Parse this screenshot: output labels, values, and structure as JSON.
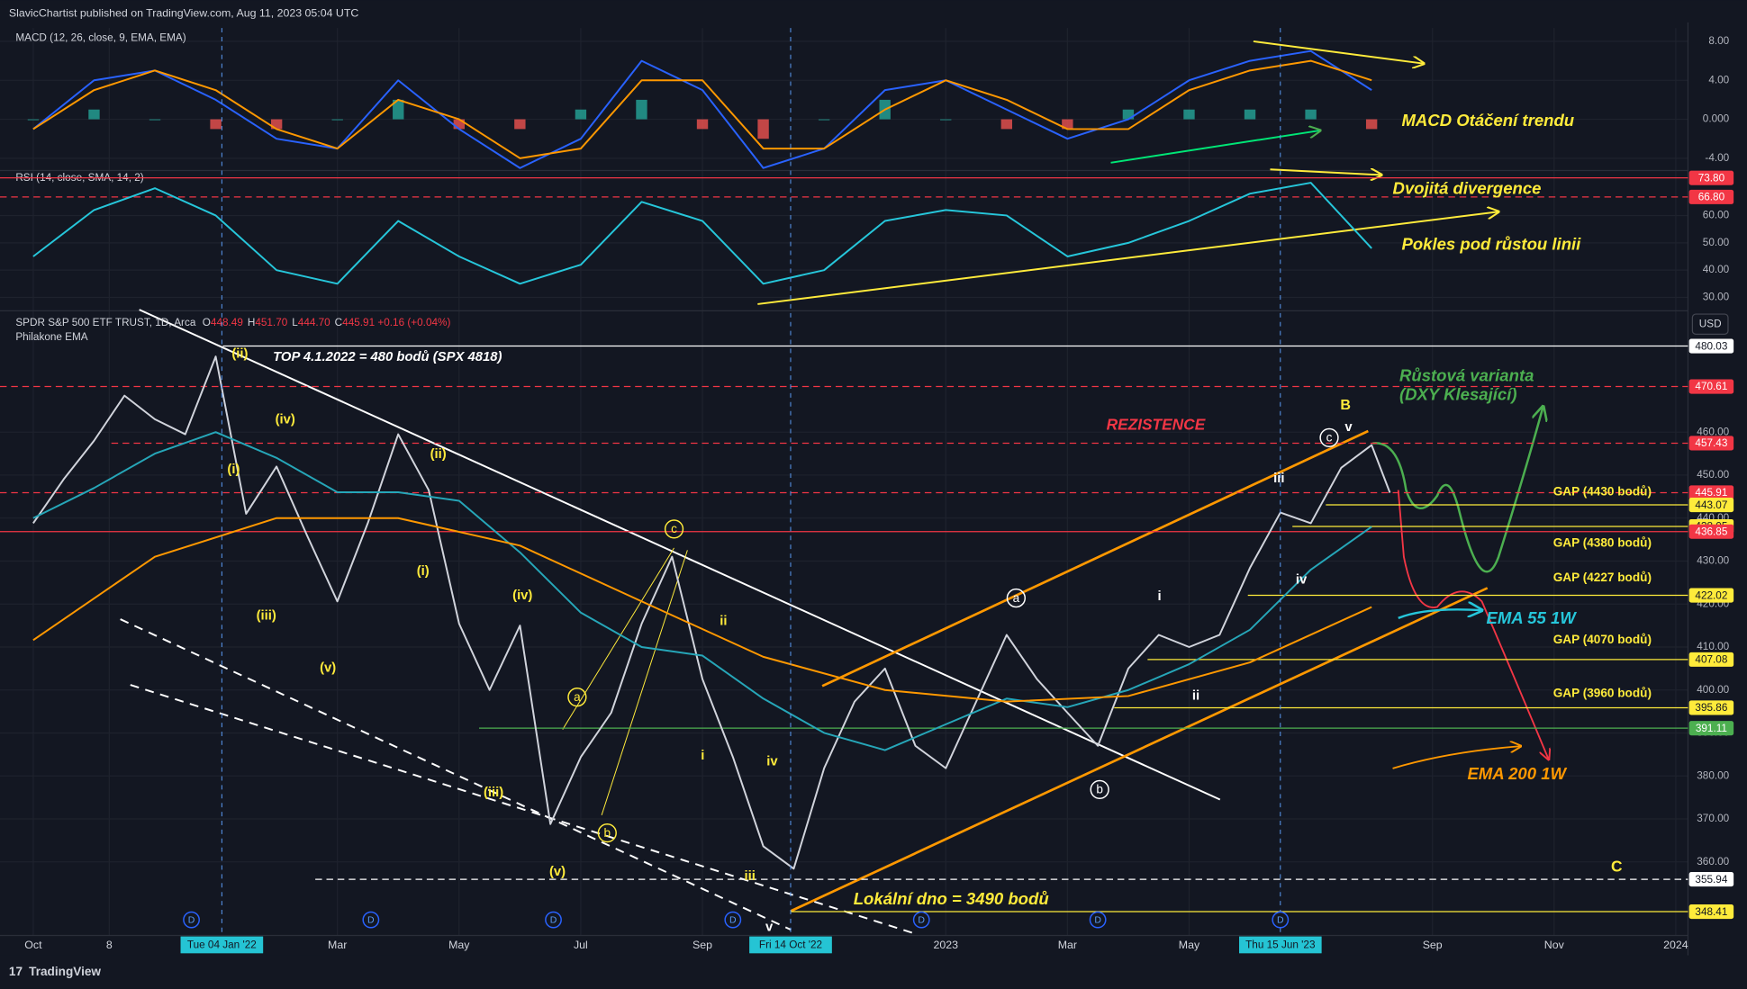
{
  "header": {
    "publisher": "SlavicChartist published on TradingView.com, Aug 11, 2023 05:04 UTC",
    "brand": "TradingView"
  },
  "chart_data": [
    {
      "type": "macd",
      "title": "MACD (12, 26, close, 9, EMA, EMA)",
      "x": [
        0,
        1,
        2,
        3,
        4,
        5,
        6,
        7,
        8,
        9,
        10,
        11,
        12,
        13,
        14,
        15,
        16,
        17,
        18,
        19,
        20,
        21,
        22
      ],
      "series": [
        {
          "style": "histogram",
          "color_up": "#26a69a",
          "color_down": "#ef5350",
          "values": [
            0,
            1,
            0,
            -1,
            -1,
            0,
            2,
            -1,
            -1,
            1,
            2,
            -1,
            -2,
            0,
            2,
            0,
            -1,
            -1,
            1,
            1,
            1,
            1,
            -1
          ]
        },
        {
          "style": "line",
          "color": "#2962ff",
          "values": [
            -1,
            4,
            5,
            2,
            -2,
            -3,
            4,
            -1,
            -5,
            -2,
            6,
            3,
            -5,
            -3,
            3,
            4,
            1,
            -2,
            0,
            4,
            6,
            7,
            3
          ]
        },
        {
          "style": "line",
          "color": "#ff9800",
          "values": [
            -1,
            3,
            5,
            3,
            -1,
            -3,
            2,
            0,
            -4,
            -3,
            4,
            4,
            -3,
            -3,
            1,
            4,
            2,
            -1,
            -1,
            3,
            5,
            6,
            4
          ]
        }
      ],
      "ylim": [
        -5.14,
        9.37
      ],
      "yticks": [
        {
          "value": 8,
          "label": "8.00"
        },
        {
          "value": 4,
          "label": "4.00"
        },
        {
          "value": 0,
          "label": "0.000"
        },
        {
          "value": -4,
          "label": "-4.00"
        }
      ],
      "annotations": [
        {
          "text": "MACD Otáčení trendu",
          "color": "#ffeb3b"
        }
      ]
    },
    {
      "type": "line",
      "title": "RSI (14, close, SMA, 14, 2)",
      "x": [
        0,
        1,
        2,
        3,
        4,
        5,
        6,
        7,
        8,
        9,
        10,
        11,
        12,
        13,
        14,
        15,
        16,
        17,
        18,
        19,
        20,
        21,
        22
      ],
      "series": [
        {
          "style": "line",
          "color": "#26c6da",
          "values": [
            45,
            62,
            70,
            60,
            40,
            35,
            58,
            45,
            35,
            42,
            65,
            58,
            35,
            40,
            58,
            62,
            60,
            45,
            50,
            58,
            68,
            72,
            48
          ]
        }
      ],
      "ylim": [
        25.5,
        76.5
      ],
      "yticks": [
        {
          "value": 30,
          "label": "30.00"
        },
        {
          "value": 40,
          "label": "40.00"
        },
        {
          "value": 50,
          "label": "50.00"
        },
        {
          "value": 60,
          "label": "60.00"
        }
      ],
      "levels": [
        {
          "value": 73.8,
          "label": "73.80",
          "color": "#f23645",
          "dash": false
        },
        {
          "value": 66.8,
          "label": "66.80",
          "color": "#f23645",
          "dash": true
        }
      ],
      "annotations": [
        {
          "text": "Dvojitá divergence",
          "color": "#ffeb3b"
        },
        {
          "text": "Pokles pod růstou linii",
          "color": "#ffeb3b"
        }
      ]
    },
    {
      "type": "line",
      "title": "SPDR S&P 500 ETF TRUST, 1D, Arca",
      "subtitle": "Philakone EMA",
      "currency": "USD",
      "ohlc": [
        {
          "key": "O",
          "value": "448.49"
        },
        {
          "key": "H",
          "value": "451.70"
        },
        {
          "key": "L",
          "value": "444.70"
        },
        {
          "key": "C",
          "value": "445.91 +0.16 (+0.04%)"
        }
      ],
      "series": [
        {
          "style": "line",
          "color": "#d1d4dc",
          "x": [
            0,
            0.5,
            1,
            1.5,
            2,
            2.5,
            3,
            3.5,
            4,
            4.5,
            5,
            5.5,
            6,
            6.5,
            7,
            7.5,
            8,
            8.5,
            9,
            9.5,
            10,
            10.5,
            11,
            11.5,
            12,
            12.5,
            13,
            13.5,
            14,
            14.5,
            15,
            15.5,
            16,
            16.5,
            17,
            17.5,
            18,
            18.5,
            19,
            19.5,
            20,
            20.5,
            21,
            21.5,
            22,
            22.3
          ],
          "values": [
            438.8,
            449,
            458,
            468.5,
            463,
            459.5,
            477.6,
            441,
            452,
            436,
            420.6,
            438.8,
            459.5,
            446.5,
            415.4,
            400,
            415,
            368.8,
            384.4,
            394.7,
            415.4,
            431,
            402.5,
            384.4,
            363.6,
            358.4,
            381.8,
            397.3,
            405,
            387,
            381.8,
            397.3,
            412.8,
            402.5,
            394.7,
            387,
            405,
            412.8,
            410,
            412.8,
            428.4,
            441.3,
            438.8,
            451.7,
            457,
            445.91
          ]
        },
        {
          "style": "line",
          "color": "#26a6b8",
          "x": [
            0,
            1,
            2,
            3,
            4,
            5,
            6,
            7,
            8,
            9,
            10,
            11,
            12,
            13,
            14,
            15,
            16,
            17,
            18,
            19,
            20,
            21,
            22
          ],
          "values": [
            440,
            447,
            455,
            460,
            454,
            446,
            446,
            444,
            432,
            418,
            410,
            408,
            398,
            390,
            386,
            392,
            398,
            396,
            400,
            406,
            414,
            428,
            438
          ]
        },
        {
          "style": "line",
          "color": "#ff9800",
          "x": [
            0,
            2,
            4,
            6,
            8,
            10,
            12,
            14,
            16,
            18,
            20,
            22
          ],
          "values": [
            411.6,
            431,
            440,
            440,
            433.6,
            420.6,
            407.7,
            400,
            397.3,
            398.6,
            406.4,
            419.3
          ]
        }
      ],
      "xlim": [
        -0.4,
        27.2
      ],
      "xticks": [
        {
          "value": 0,
          "label": "Oct"
        },
        {
          "value": 1.25,
          "label": "8"
        },
        {
          "value": 5,
          "label": "Mar"
        },
        {
          "value": 7,
          "label": "May"
        },
        {
          "value": 9,
          "label": "Jul"
        },
        {
          "value": 11,
          "label": "Sep"
        },
        {
          "value": 15,
          "label": "2023"
        },
        {
          "value": 17,
          "label": "Mar"
        },
        {
          "value": 19,
          "label": "May"
        },
        {
          "value": 23,
          "label": "Sep"
        },
        {
          "value": 25,
          "label": "Nov"
        },
        {
          "value": 27,
          "label": "2024"
        }
      ],
      "x_markers": [
        {
          "value": 3.1,
          "label": "Tue 04 Jan '22"
        },
        {
          "value": 12.45,
          "label": "Fri 14 Oct '22"
        },
        {
          "value": 20.5,
          "label": "Thu 15 Jun '23"
        }
      ],
      "events": {
        "label": "D",
        "x": [
          2.6,
          5.55,
          8.55,
          11.5,
          14.6,
          17.5,
          20.5
        ]
      },
      "ylim": [
        343.4,
        487.2
      ],
      "yticks": [
        {
          "value": 360,
          "label": "360.00"
        },
        {
          "value": 370,
          "label": "370.00"
        },
        {
          "value": 380,
          "label": "380.00"
        },
        {
          "value": 390,
          "label": "390.00"
        },
        {
          "value": 400,
          "label": "400.00"
        },
        {
          "value": 410,
          "label": "410.00"
        },
        {
          "value": 420,
          "label": "420.00"
        },
        {
          "value": 430,
          "label": "430.00"
        },
        {
          "value": 440,
          "label": "440.00"
        },
        {
          "value": 450,
          "label": "450.00"
        },
        {
          "value": 460,
          "label": "460.00"
        }
      ],
      "grid": true,
      "levels": [
        {
          "value": 480.03,
          "color": "#ffffff",
          "dash": false
        },
        {
          "value": 470.61,
          "color": "#f23645",
          "dash": true
        },
        {
          "value": 457.43,
          "color": "#f23645",
          "dash": true
        },
        {
          "value": 445.91,
          "color": "#f23645",
          "dash": true
        },
        {
          "value": 443.07,
          "color": "#ffeb3b",
          "dash": false
        },
        {
          "value": 438.05,
          "color": "#ffeb3b",
          "dash": false
        },
        {
          "value": 436.85,
          "color": "#f23645",
          "dash": false
        },
        {
          "value": 422.02,
          "color": "#ffeb3b",
          "dash": false
        },
        {
          "value": 407.08,
          "color": "#ffeb3b",
          "dash": false
        },
        {
          "value": 395.86,
          "color": "#ffeb3b",
          "dash": false
        },
        {
          "value": 391.11,
          "color": "#4caf50",
          "dash": false
        },
        {
          "value": 355.94,
          "color": "#ffffff",
          "dash": true
        },
        {
          "value": 348.41,
          "color": "#ffeb3b",
          "dash": false
        }
      ],
      "annotations": [
        {
          "text": "TOP 4.1.2022 = 480 bodů (SPX 4818)",
          "color": "#ffffff"
        },
        {
          "text": "REZISTENCE",
          "color": "#f23645"
        },
        {
          "text": "Růstová varianta",
          "color": "#4caf50"
        },
        {
          "text": "(DXY Klesající)",
          "color": "#4caf50"
        },
        {
          "text": "B",
          "color": "#ffeb3b"
        },
        {
          "text": "GAP (4430 bodů)",
          "color": "#ffeb3b"
        },
        {
          "text": "GAP (4380 bodů)",
          "color": "#ffeb3b"
        },
        {
          "text": "GAP (4227 bodů)",
          "color": "#ffeb3b"
        },
        {
          "text": "EMA 55 1W",
          "color": "#26c6da"
        },
        {
          "text": "GAP (4070 bodů)",
          "color": "#ffeb3b"
        },
        {
          "text": "GAP (3960 bodů)",
          "color": "#ffeb3b"
        },
        {
          "text": "EMA 200 1W",
          "color": "#ff9800"
        },
        {
          "text": "Lokální dno = 3490 bodů",
          "color": "#ffeb3b"
        },
        {
          "text": "C",
          "color": "#ffeb3b"
        },
        {
          "text": "(ii)",
          "color": "#ffeb3b"
        },
        {
          "text": "(iv)",
          "color": "#ffeb3b"
        },
        {
          "text": "(i)",
          "color": "#ffeb3b"
        },
        {
          "text": "(ii)",
          "color": "#ffeb3b"
        },
        {
          "text": "(iii)",
          "color": "#ffeb3b"
        },
        {
          "text": "(v)",
          "color": "#ffeb3b"
        },
        {
          "text": "(i)",
          "color": "#ffeb3b"
        },
        {
          "text": "(iv)",
          "color": "#ffeb3b"
        },
        {
          "text": "(iii)",
          "color": "#ffeb3b"
        },
        {
          "text": "(v)",
          "color": "#ffeb3b"
        },
        {
          "text": "ii",
          "color": "#ffeb3b"
        },
        {
          "text": "i",
          "color": "#ffeb3b"
        },
        {
          "text": "iv",
          "color": "#ffeb3b"
        },
        {
          "text": "iii",
          "color": "#ffeb3b"
        },
        {
          "text": "v",
          "color": "#ffffff"
        },
        {
          "text": "i",
          "color": "#ffffff"
        },
        {
          "text": "ii",
          "color": "#ffffff"
        },
        {
          "text": "iii",
          "color": "#ffffff"
        },
        {
          "text": "iv",
          "color": "#ffffff"
        },
        {
          "text": "v",
          "color": "#ffffff"
        },
        {
          "text": "a",
          "color": "#ffeb3b",
          "shape": "circle"
        },
        {
          "text": "b",
          "color": "#ffeb3b",
          "shape": "circle"
        },
        {
          "text": "c",
          "color": "#ffeb3b",
          "shape": "circle"
        },
        {
          "text": "a",
          "color": "#ffffff",
          "shape": "circle"
        },
        {
          "text": "b",
          "color": "#ffffff",
          "shape": "circle"
        },
        {
          "text": "c",
          "color": "#ffffff",
          "shape": "circle"
        }
      ]
    }
  ]
}
